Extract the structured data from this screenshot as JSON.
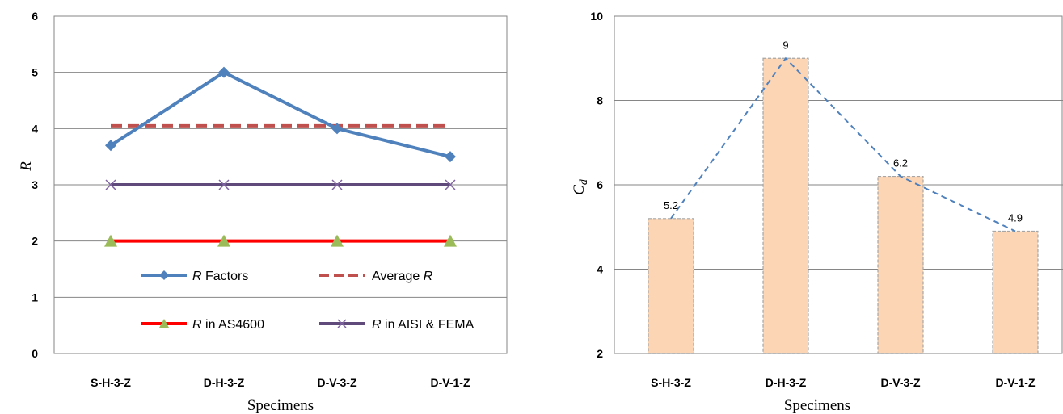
{
  "chart_data": [
    {
      "type": "line",
      "title": "",
      "xlabel": "Specimens",
      "ylabel": "R",
      "ylim": [
        0,
        6
      ],
      "yticks": [
        0,
        1,
        2,
        3,
        4,
        5,
        6
      ],
      "grid": true,
      "legend_position": "lower-center inside plot",
      "categories": [
        "S-H-3-Z",
        "D-H-3-Z",
        "D-V-3-Z",
        "D-V-1-Z"
      ],
      "series": [
        {
          "name": "R Factors",
          "name_italic": "R",
          "name_rest": " Factors",
          "values": [
            3.7,
            5.0,
            4.0,
            3.5
          ],
          "color": "#4f81bd",
          "marker": "diamond",
          "style": "solid"
        },
        {
          "name": "Average R",
          "name_plain": "Average ",
          "name_italic": "R",
          "values": [
            4.05,
            4.05,
            4.05,
            4.05
          ],
          "color": "#c0504d",
          "marker": "none",
          "style": "dashed"
        },
        {
          "name": "R in AS4600",
          "name_italic": "R",
          "name_rest": " in AS4600",
          "values": [
            2,
            2,
            2,
            2
          ],
          "color": "#ff0000",
          "marker": "triangle",
          "marker_color": "#9bbb59",
          "style": "solid"
        },
        {
          "name": "R in AISI & FEMA",
          "name_italic": "R",
          "name_rest": " in AISI & FEMA",
          "values": [
            3,
            3,
            3,
            3
          ],
          "color": "#604a7b",
          "marker": "x",
          "marker_color": "#8064a2",
          "style": "solid"
        }
      ]
    },
    {
      "type": "bar",
      "title": "",
      "xlabel": "Specimens",
      "ylabel": "Cd",
      "ylabel_main": "C",
      "ylabel_sub": "d",
      "ylim": [
        2,
        10
      ],
      "yticks": [
        2,
        4,
        6,
        8,
        10
      ],
      "grid": true,
      "categories": [
        "S-H-3-Z",
        "D-H-3-Z",
        "D-V-3-Z",
        "D-V-1-Z"
      ],
      "values": [
        5.2,
        9,
        6.2,
        4.9
      ],
      "data_labels": [
        "5.2",
        "9",
        "6.2",
        "4.9"
      ],
      "bar_color": "#fcd5b5",
      "bar_border": "#a6a6a6",
      "trend_line": {
        "style": "dashed",
        "color": "#4f81bd"
      }
    }
  ]
}
